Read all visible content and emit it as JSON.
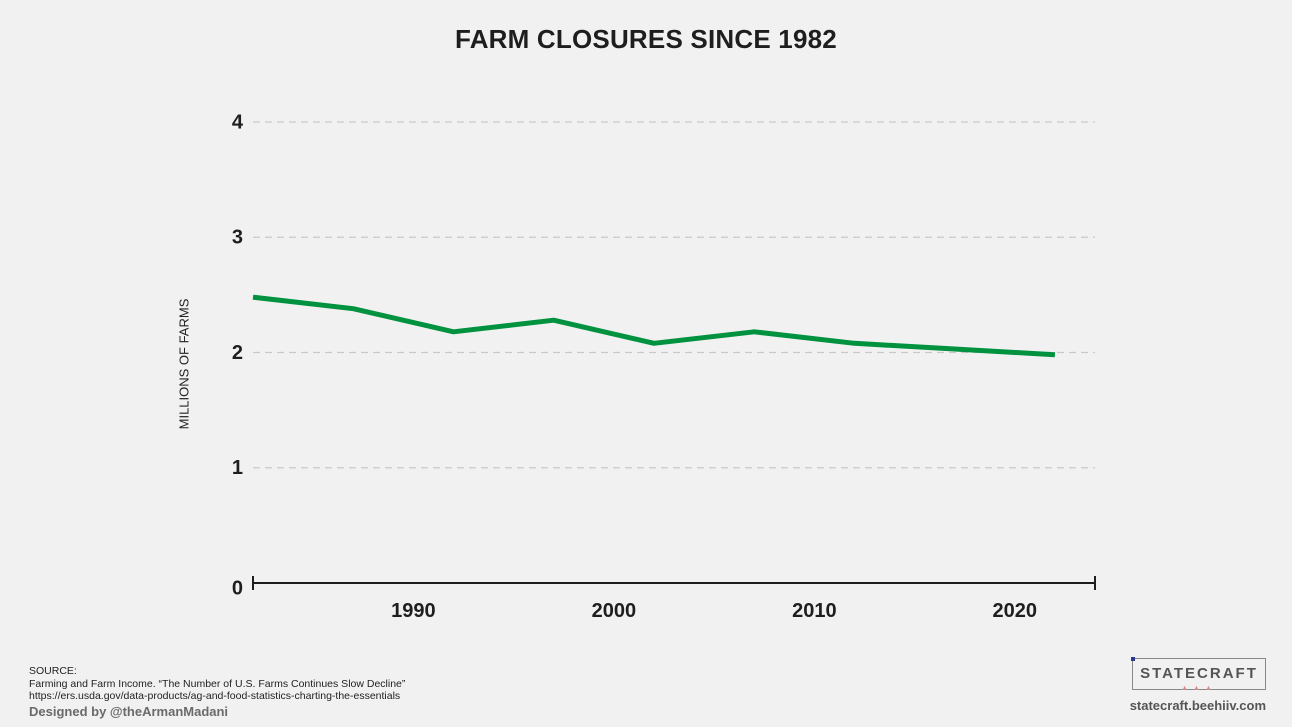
{
  "chart_data": {
    "type": "line",
    "title": "FARM CLOSURES SINCE 1982",
    "ylabel": "MILLIONS OF FARMS",
    "xlabel": "",
    "xlim": [
      1982,
      2024
    ],
    "ylim": [
      0,
      4
    ],
    "x_ticks": [
      1990,
      2000,
      2010,
      2020
    ],
    "y_ticks": [
      0,
      1,
      2,
      3,
      4
    ],
    "grid": "horizontal dashed",
    "series": [
      {
        "color": "#00923f",
        "x": [
          1982,
          1987,
          1992,
          1997,
          2002,
          2007,
          2012,
          2017,
          2022
        ],
        "y": [
          2.48,
          2.38,
          2.18,
          2.28,
          2.08,
          2.18,
          2.08,
          2.03,
          1.98
        ]
      }
    ],
    "axis_color": "#1e1e1e",
    "grid_color": "#c9c9c9"
  },
  "footer": {
    "source_heading": "SOURCE:",
    "source_line1": "Farming and Farm Income. “The Number of U.S. Farms Continues Slow Decline”",
    "source_line2": "https://ers.usda.gov/data-products/ag-and-food-statistics-charting-the-essentials",
    "designer": "Designed by @theArmanMadani"
  },
  "brand": {
    "name": "STATECRAFT",
    "mark": "▲▲▲",
    "url": "statecraft.beehiiv.com"
  }
}
